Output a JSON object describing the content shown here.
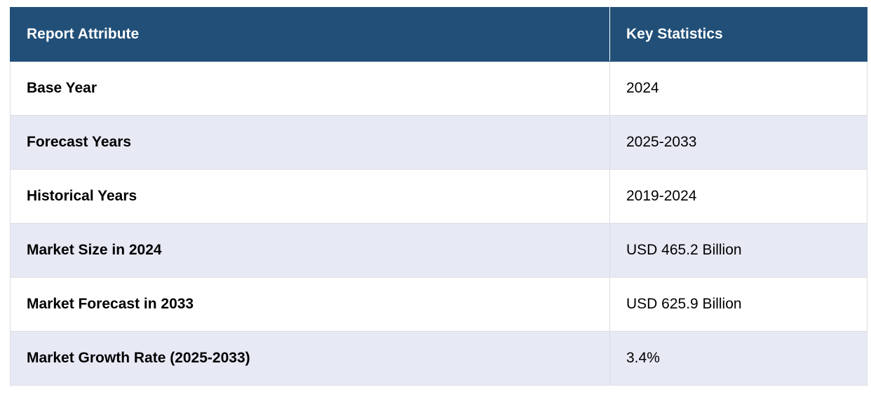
{
  "table": {
    "headers": [
      "Report Attribute",
      "Key Statistics"
    ],
    "rows": [
      {
        "attribute": "Base Year",
        "value": "2024"
      },
      {
        "attribute": "Forecast Years",
        "value": "2025-2033"
      },
      {
        "attribute": "Historical Years",
        "value": "2019-2024"
      },
      {
        "attribute": "Market Size in 2024",
        "value": "USD 465.2 Billion"
      },
      {
        "attribute": "Market Forecast in 2033",
        "value": "USD 625.9 Billion"
      },
      {
        "attribute": "Market Growth Rate (2025-2033)",
        "value": "3.4%"
      }
    ]
  },
  "colors": {
    "header_bg": "#214f78",
    "header_text": "#ffffff",
    "row_alt_bg": "#e7e9f5",
    "row_bg": "#ffffff"
  }
}
